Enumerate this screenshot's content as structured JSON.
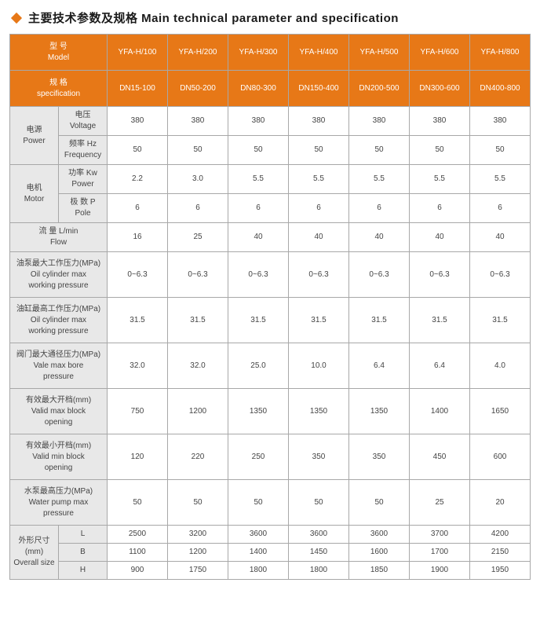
{
  "title": "主要技术参数及规格 Main technical parameter and specification",
  "header": {
    "model_cn": "型 号",
    "model_en": "Model",
    "spec_cn": "规 格",
    "spec_en": "specification",
    "models": [
      "YFA-H/100",
      "YFA-H/200",
      "YFA-H/300",
      "YFA-H/400",
      "YFA-H/500",
      "YFA-H/600",
      "YFA-H/800"
    ],
    "specs": [
      "DN15-100",
      "DN50-200",
      "DN80-300",
      "DN150-400",
      "DN200-500",
      "DN300-600",
      "DN400-800"
    ]
  },
  "rows": {
    "power": {
      "cn": "电源",
      "en": "Power",
      "voltage": {
        "cn": "电压",
        "en": "Voltage",
        "v": [
          "380",
          "380",
          "380",
          "380",
          "380",
          "380",
          "380"
        ]
      },
      "freq": {
        "cn": "频率 Hz",
        "en": "Frequency",
        "v": [
          "50",
          "50",
          "50",
          "50",
          "50",
          "50",
          "50"
        ]
      }
    },
    "motor": {
      "cn": "电机",
      "en": "Motor",
      "pw": {
        "cn": "功率 Kw",
        "en": "Power",
        "v": [
          "2.2",
          "3.0",
          "5.5",
          "5.5",
          "5.5",
          "5.5",
          "5.5"
        ]
      },
      "pole": {
        "cn": "极 数 P",
        "en": "Pole",
        "v": [
          "6",
          "6",
          "6",
          "6",
          "6",
          "6",
          "6"
        ]
      }
    },
    "flow": {
      "cn": "流 量 L/min",
      "en": "Flow",
      "v": [
        "16",
        "25",
        "40",
        "40",
        "40",
        "40",
        "40"
      ]
    },
    "oilpump": {
      "cn": "油泵最大工作压力(MPa)",
      "en1": "Oil cylinder max",
      "en2": "working pressure",
      "v": [
        "0~6.3",
        "0~6.3",
        "0~6.3",
        "0~6.3",
        "0~6.3",
        "0~6.3",
        "0~6.3"
      ]
    },
    "oilcyl": {
      "cn": "油缸最高工作压力(MPa)",
      "en1": "Oil cylinder max",
      "en2": "working pressure",
      "v": [
        "31.5",
        "31.5",
        "31.5",
        "31.5",
        "31.5",
        "31.5",
        "31.5"
      ]
    },
    "valve": {
      "cn": "阀门最大通径压力(MPa)",
      "en1": "Vale max bore",
      "en2": "pressure",
      "v": [
        "32.0",
        "32.0",
        "25.0",
        "10.0",
        "6.4",
        "6.4",
        "4.0"
      ]
    },
    "maxblk": {
      "cn": "有效最大开档(mm)",
      "en1": "Valid max block",
      "en2": "opening",
      "v": [
        "750",
        "1200",
        "1350",
        "1350",
        "1350",
        "1400",
        "1650"
      ]
    },
    "minblk": {
      "cn": "有效最小开档(mm)",
      "en1": "Valid min block",
      "en2": "opening",
      "v": [
        "120",
        "220",
        "250",
        "350",
        "350",
        "450",
        "600"
      ]
    },
    "wpump": {
      "cn": "水泵最高压力(MPa)",
      "en1": "Water pump max",
      "en2": "pressure",
      "v": [
        "50",
        "50",
        "50",
        "50",
        "50",
        "25",
        "20"
      ]
    },
    "size": {
      "cn": "外形尺寸 (mm)",
      "en": "Overall size",
      "L": [
        "2500",
        "3200",
        "3600",
        "3600",
        "3600",
        "3700",
        "4200"
      ],
      "B": [
        "1100",
        "1200",
        "1400",
        "1450",
        "1600",
        "1700",
        "2150"
      ],
      "H": [
        "900",
        "1750",
        "1800",
        "1800",
        "1850",
        "1900",
        "1950"
      ]
    }
  },
  "colors": {
    "accent": "#e77817",
    "label_bg": "#e8e8e8",
    "border": "#a8a8a8",
    "text": "#444444"
  }
}
